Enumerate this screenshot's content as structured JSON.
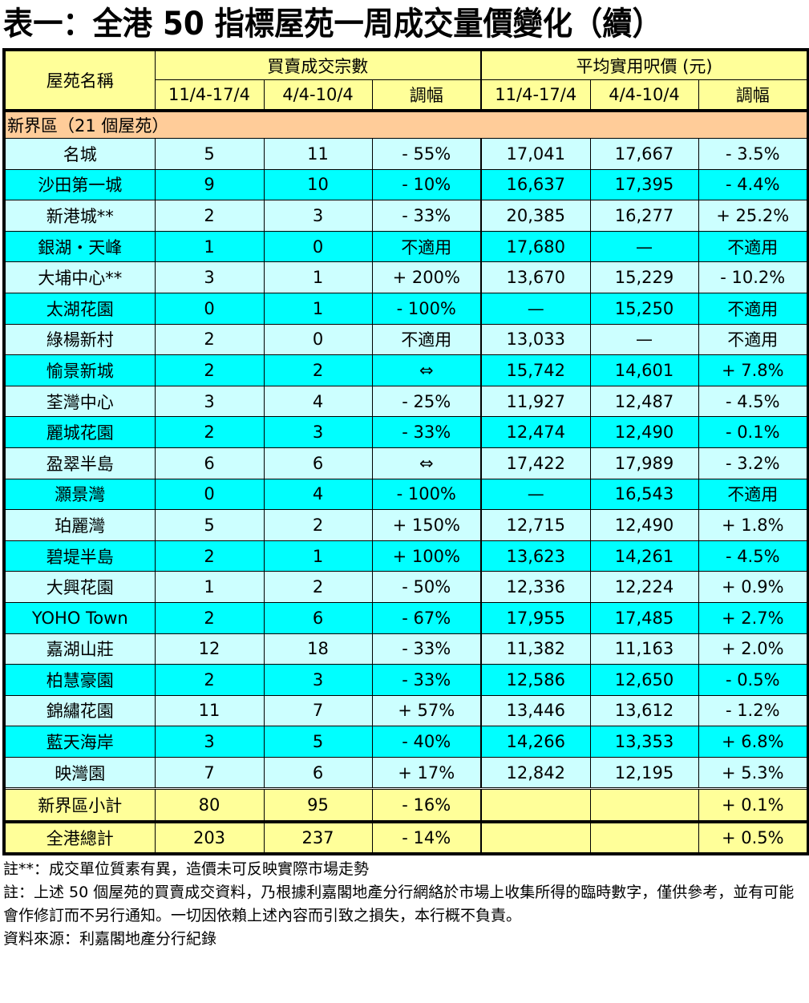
{
  "title": "表一：全港 50 指標屋苑一周成交量價變化（續）",
  "table": {
    "header": {
      "estate_name": "屋苑名稱",
      "group_transactions": "買賣成交宗數",
      "group_price": "平均實用呎價 (元)",
      "period_current": "11/4-17/4",
      "period_previous": "4/4-10/4",
      "change": "調幅"
    },
    "section": "新界區（21 個屋苑）",
    "rows": [
      {
        "name": "名城",
        "tx_cur": "5",
        "tx_prev": "11",
        "tx_chg": "- 55%",
        "px_cur": "17,041",
        "px_prev": "17,667",
        "px_chg": "- 3.5%"
      },
      {
        "name": "沙田第一城",
        "tx_cur": "9",
        "tx_prev": "10",
        "tx_chg": "- 10%",
        "px_cur": "16,637",
        "px_prev": "17,395",
        "px_chg": "- 4.4%"
      },
      {
        "name": "新港城**",
        "tx_cur": "2",
        "tx_prev": "3",
        "tx_chg": "- 33%",
        "px_cur": "20,385",
        "px_prev": "16,277",
        "px_chg": "+ 25.2%"
      },
      {
        "name": "銀湖・天峰",
        "tx_cur": "1",
        "tx_prev": "0",
        "tx_chg": "不適用",
        "px_cur": "17,680",
        "px_prev": "—",
        "px_chg": "不適用"
      },
      {
        "name": "大埔中心**",
        "tx_cur": "3",
        "tx_prev": "1",
        "tx_chg": "+ 200%",
        "px_cur": "13,670",
        "px_prev": "15,229",
        "px_chg": "- 10.2%"
      },
      {
        "name": "太湖花園",
        "tx_cur": "0",
        "tx_prev": "1",
        "tx_chg": "- 100%",
        "px_cur": "—",
        "px_prev": "15,250",
        "px_chg": "不適用"
      },
      {
        "name": "綠楊新村",
        "tx_cur": "2",
        "tx_prev": "0",
        "tx_chg": "不適用",
        "px_cur": "13,033",
        "px_prev": "—",
        "px_chg": "不適用"
      },
      {
        "name": "愉景新城",
        "tx_cur": "2",
        "tx_prev": "2",
        "tx_chg": "⇔",
        "px_cur": "15,742",
        "px_prev": "14,601",
        "px_chg": "+ 7.8%"
      },
      {
        "name": "荃灣中心",
        "tx_cur": "3",
        "tx_prev": "4",
        "tx_chg": "- 25%",
        "px_cur": "11,927",
        "px_prev": "12,487",
        "px_chg": "- 4.5%"
      },
      {
        "name": "麗城花園",
        "tx_cur": "2",
        "tx_prev": "3",
        "tx_chg": "- 33%",
        "px_cur": "12,474",
        "px_prev": "12,490",
        "px_chg": "- 0.1%"
      },
      {
        "name": "盈翠半島",
        "tx_cur": "6",
        "tx_prev": "6",
        "tx_chg": "⇔",
        "px_cur": "17,422",
        "px_prev": "17,989",
        "px_chg": "- 3.2%"
      },
      {
        "name": "灝景灣",
        "tx_cur": "0",
        "tx_prev": "4",
        "tx_chg": "- 100%",
        "px_cur": "—",
        "px_prev": "16,543",
        "px_chg": "不適用"
      },
      {
        "name": "珀麗灣",
        "tx_cur": "5",
        "tx_prev": "2",
        "tx_chg": "+ 150%",
        "px_cur": "12,715",
        "px_prev": "12,490",
        "px_chg": "+ 1.8%"
      },
      {
        "name": "碧堤半島",
        "tx_cur": "2",
        "tx_prev": "1",
        "tx_chg": "+ 100%",
        "px_cur": "13,623",
        "px_prev": "14,261",
        "px_chg": "- 4.5%"
      },
      {
        "name": "大興花園",
        "tx_cur": "1",
        "tx_prev": "2",
        "tx_chg": "- 50%",
        "px_cur": "12,336",
        "px_prev": "12,224",
        "px_chg": "+ 0.9%"
      },
      {
        "name": "YOHO Town",
        "tx_cur": "2",
        "tx_prev": "6",
        "tx_chg": "- 67%",
        "px_cur": "17,955",
        "px_prev": "17,485",
        "px_chg": "+ 2.7%"
      },
      {
        "name": "嘉湖山莊",
        "tx_cur": "12",
        "tx_prev": "18",
        "tx_chg": "- 33%",
        "px_cur": "11,382",
        "px_prev": "11,163",
        "px_chg": "+ 2.0%"
      },
      {
        "name": "柏慧豪園",
        "tx_cur": "2",
        "tx_prev": "3",
        "tx_chg": "- 33%",
        "px_cur": "12,586",
        "px_prev": "12,650",
        "px_chg": "- 0.5%"
      },
      {
        "name": "錦繡花園",
        "tx_cur": "11",
        "tx_prev": "7",
        "tx_chg": "+ 57%",
        "px_cur": "13,446",
        "px_prev": "13,612",
        "px_chg": "- 1.2%"
      },
      {
        "name": "藍天海岸",
        "tx_cur": "3",
        "tx_prev": "5",
        "tx_chg": "- 40%",
        "px_cur": "14,266",
        "px_prev": "13,353",
        "px_chg": "+ 6.8%"
      },
      {
        "name": "映灣園",
        "tx_cur": "7",
        "tx_prev": "6",
        "tx_chg": "+ 17%",
        "px_cur": "12,842",
        "px_prev": "12,195",
        "px_chg": "+ 5.3%"
      }
    ],
    "subtotal": {
      "name": "新界區小計",
      "tx_cur": "80",
      "tx_prev": "95",
      "tx_chg": "- 16%",
      "px_cur": "",
      "px_prev": "",
      "px_chg": "+ 0.1%"
    },
    "total": {
      "name": "全港總計",
      "tx_cur": "203",
      "tx_prev": "237",
      "tx_chg": "- 14%",
      "px_cur": "",
      "px_prev": "",
      "px_chg": "+ 0.5%"
    }
  },
  "notes": {
    "note1": "註**：成交單位質素有異，造價未可反映實際市場走勢",
    "note2": "註：上述 50 個屋苑的買賣成交資料，乃根據利嘉閣地產分行網絡於市場上收集所得的臨時數字，僅供參考，並有可能會作修訂而不另行通知。一切因依賴上述內容而引致之損失，本行概不負責。",
    "source": "資料來源：利嘉閣地產分行紀錄"
  },
  "colors": {
    "header_bg": "#ffff99",
    "section_bg": "#ffcc99",
    "row_light": "#ccffff",
    "row_cyan": "#00ffff",
    "summary_bg": "#ffff99"
  }
}
